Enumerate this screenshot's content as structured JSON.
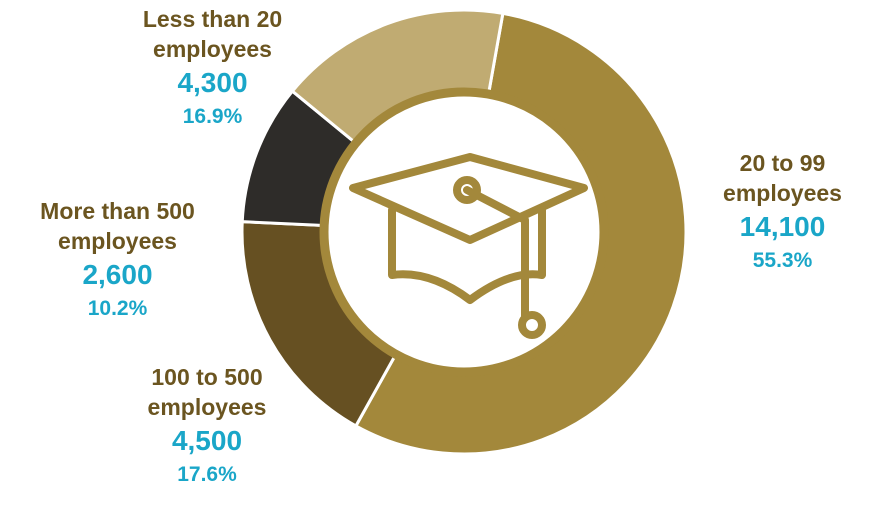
{
  "chart_data": {
    "type": "pie",
    "variant": "donut",
    "center_icon": "graduation-cap-icon",
    "colors": {
      "ring_outline": "#a3883b",
      "icon_stroke": "#a3883b",
      "category_text": "#6b5520",
      "value_text": "#1aa6c8"
    },
    "slices": [
      {
        "label": "20 to 99 employees",
        "lines": [
          "20 to 99",
          "employees"
        ],
        "value": 14100,
        "value_label": "14,100",
        "percent": 55.3,
        "percent_label": "55.3%",
        "color": "#a3883b"
      },
      {
        "label": "100 to 500 employees",
        "lines": [
          "100 to 500",
          "employees"
        ],
        "value": 4500,
        "value_label": "4,500",
        "percent": 17.6,
        "percent_label": "17.6%",
        "color": "#665022"
      },
      {
        "label": "More than 500 employees",
        "lines": [
          "More than 500",
          "employees"
        ],
        "value": 2600,
        "value_label": "2,600",
        "percent": 10.2,
        "percent_label": "10.2%",
        "color": "#2e2c29"
      },
      {
        "label": "Less than 20 employees",
        "lines": [
          "Less than 20",
          "employees"
        ],
        "value": 4300,
        "value_label": "4,300",
        "percent": 16.9,
        "percent_label": "16.9%",
        "color": "#c0ab72"
      }
    ]
  }
}
